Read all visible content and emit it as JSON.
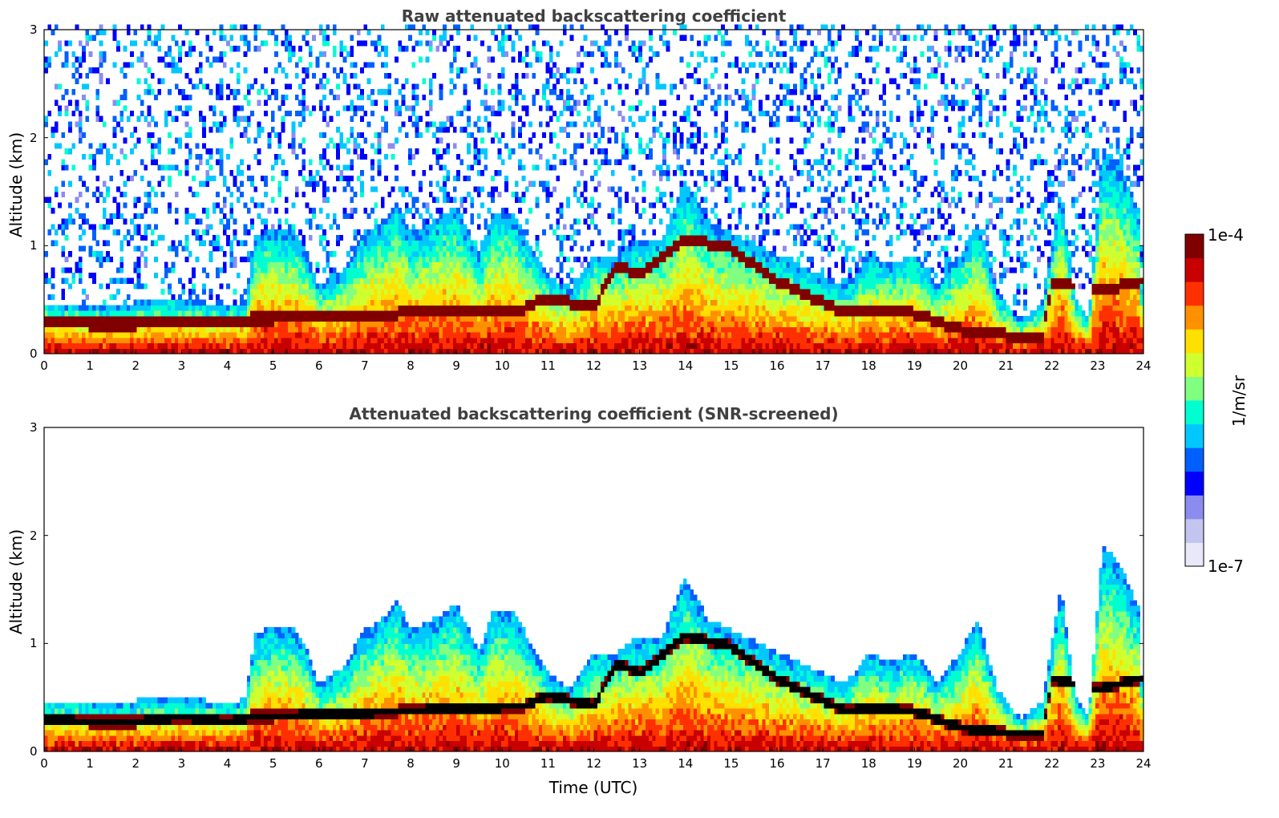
{
  "chart_data": [
    {
      "type": "heatmap",
      "title": "Raw attenuated backscattering coefficient",
      "xlabel": "",
      "ylabel": "Altitude (km)",
      "xlim": [
        0,
        24
      ],
      "ylim": [
        0,
        3
      ],
      "xticks": [
        "0",
        "1",
        "2",
        "3",
        "4",
        "5",
        "6",
        "7",
        "8",
        "9",
        "10",
        "11",
        "12",
        "13",
        "14",
        "15",
        "16",
        "17",
        "18",
        "19",
        "20",
        "21",
        "22",
        "23",
        "24"
      ],
      "yticks": [
        "0",
        "1",
        "2",
        "3"
      ],
      "screened": false
    },
    {
      "type": "heatmap",
      "title": "Attenuated backscattering coefficient (SNR-screened)",
      "xlabel": "Time (UTC)",
      "ylabel": "Altitude (km)",
      "xlim": [
        0,
        24
      ],
      "ylim": [
        0,
        3
      ],
      "xticks": [
        "0",
        "1",
        "2",
        "3",
        "4",
        "5",
        "6",
        "7",
        "8",
        "9",
        "10",
        "11",
        "12",
        "13",
        "14",
        "15",
        "16",
        "17",
        "18",
        "19",
        "20",
        "21",
        "22",
        "23",
        "24"
      ],
      "yticks": [
        "0",
        "1",
        "2",
        "3"
      ],
      "screened": true
    }
  ],
  "colorbar": {
    "max_label": "1e-4",
    "min_label": "1e-7",
    "unit_label": "1/m/sr",
    "scale": "log",
    "colormap": [
      "#e8e8f8",
      "#c4c4f0",
      "#8c8cf0",
      "#0000ff",
      "#0060ff",
      "#00c8ff",
      "#00ffd0",
      "#80ff80",
      "#d0ff30",
      "#ffe000",
      "#ff9000",
      "#ff3000",
      "#c80000",
      "#800000"
    ]
  },
  "profile": {
    "top_altitude_km": [
      [
        0,
        0.45
      ],
      [
        0.5,
        0.44
      ],
      [
        1,
        0.42
      ],
      [
        1.5,
        0.44
      ],
      [
        2,
        0.45
      ],
      [
        2.5,
        0.47
      ],
      [
        3,
        0.48
      ],
      [
        3.5,
        0.45
      ],
      [
        4,
        0.42
      ],
      [
        4.4,
        0.47
      ],
      [
        4.6,
        1.05
      ],
      [
        5,
        1.15
      ],
      [
        5.5,
        1.1
      ],
      [
        5.8,
        0.85
      ],
      [
        6,
        0.6
      ],
      [
        6.5,
        0.75
      ],
      [
        7,
        1.1
      ],
      [
        7.5,
        1.25
      ],
      [
        7.7,
        1.4
      ],
      [
        8,
        1.1
      ],
      [
        8.5,
        1.2
      ],
      [
        9,
        1.35
      ],
      [
        9.5,
        0.9
      ],
      [
        9.8,
        1.3
      ],
      [
        10.2,
        1.3
      ],
      [
        10.6,
        1.0
      ],
      [
        11,
        0.7
      ],
      [
        11.5,
        0.55
      ],
      [
        12,
        0.9
      ],
      [
        12.5,
        0.9
      ],
      [
        13,
        1.05
      ],
      [
        13.5,
        1.05
      ],
      [
        14,
        1.6
      ],
      [
        14.5,
        1.2
      ],
      [
        15,
        1.1
      ],
      [
        15.5,
        1.0
      ],
      [
        16,
        0.9
      ],
      [
        16.5,
        0.8
      ],
      [
        17,
        0.7
      ],
      [
        17.5,
        0.6
      ],
      [
        18,
        0.9
      ],
      [
        18.5,
        0.8
      ],
      [
        19,
        0.9
      ],
      [
        19.5,
        0.6
      ],
      [
        20,
        0.9
      ],
      [
        20.4,
        1.2
      ],
      [
        20.8,
        0.55
      ],
      [
        21.3,
        0.28
      ],
      [
        21.8,
        0.45
      ],
      [
        22.2,
        1.5
      ],
      [
        22.5,
        0.5
      ],
      [
        22.8,
        0.3
      ],
      [
        23.1,
        1.9
      ],
      [
        23.5,
        1.7
      ],
      [
        23.9,
        1.3
      ],
      [
        24,
        0.3
      ]
    ],
    "pbl_altitude_km": [
      [
        0,
        0.28
      ],
      [
        1,
        0.25
      ],
      [
        2,
        0.25
      ],
      [
        3,
        0.3
      ],
      [
        4,
        0.25
      ],
      [
        4.5,
        0.3
      ],
      [
        5,
        0.3
      ],
      [
        10.5,
        0.4
      ],
      [
        11,
        0.5
      ],
      [
        12,
        0.4
      ],
      [
        12.5,
        0.8
      ],
      [
        13,
        0.7
      ],
      [
        14,
        1.05
      ],
      [
        15,
        0.95
      ],
      [
        16,
        0.65
      ],
      [
        17,
        0.45
      ],
      [
        17.5,
        0.35
      ],
      [
        18,
        0.38
      ],
      [
        19,
        0.35
      ],
      [
        20,
        0.2
      ],
      [
        21,
        0.15
      ],
      [
        21.8,
        0.15
      ],
      [
        22,
        0.65
      ],
      [
        22.5,
        0.6
      ],
      [
        23,
        0.55
      ],
      [
        23.9,
        0.65
      ]
    ]
  },
  "colors": {
    "title": "#404040",
    "axis": "#000000",
    "background": "#ffffff"
  }
}
